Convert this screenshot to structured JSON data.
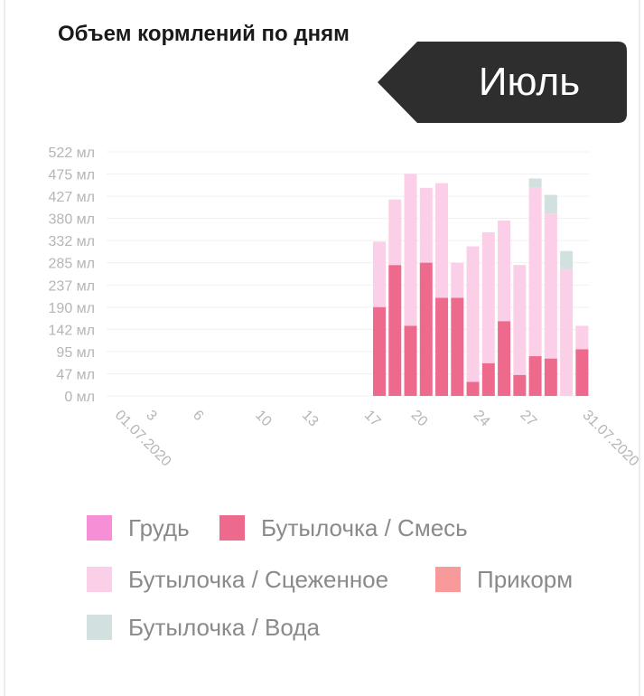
{
  "title": "Объем кормлений по дням",
  "month": "Июль",
  "colors": {
    "breast": "#f78fd6",
    "formula": "#ee6a8c",
    "expressed": "#fccfe8",
    "solid": "#f99a9a",
    "water": "#d2e0e0",
    "tag_bg": "#2e2e2e"
  },
  "chart_data": {
    "type": "bar",
    "stacked": true,
    "y_tick_labels": [
      "0 мл",
      "47 мл",
      "95 мл",
      "142 мл",
      "190 мл",
      "237 мл",
      "285 мл",
      "332 мл",
      "380 мл",
      "427 мл",
      "475 мл",
      "522 мл"
    ],
    "ylim": [
      0,
      522
    ],
    "x_range": [
      1,
      31
    ],
    "x_tick_labels": [
      {
        "day": 1,
        "label": "01.07.2020"
      },
      {
        "day": 3,
        "label": "3"
      },
      {
        "day": 6,
        "label": "6"
      },
      {
        "day": 10,
        "label": "10"
      },
      {
        "day": 13,
        "label": "13"
      },
      {
        "day": 17,
        "label": "17"
      },
      {
        "day": 20,
        "label": "20"
      },
      {
        "day": 24,
        "label": "24"
      },
      {
        "day": 27,
        "label": "27"
      },
      {
        "day": 31,
        "label": "31.07.2020"
      }
    ],
    "grid": true,
    "legend_position": "bottom",
    "days": [
      1,
      2,
      3,
      4,
      5,
      6,
      7,
      8,
      9,
      10,
      11,
      12,
      13,
      14,
      15,
      16,
      17,
      18,
      19,
      20,
      21,
      22,
      23,
      24,
      25,
      26,
      27,
      28,
      29,
      30,
      31
    ],
    "series": [
      {
        "name": "Грудь",
        "key": "breast",
        "values": [
          0,
          0,
          0,
          0,
          0,
          0,
          0,
          0,
          0,
          0,
          0,
          0,
          0,
          0,
          0,
          0,
          0,
          0,
          0,
          0,
          0,
          0,
          0,
          0,
          0,
          0,
          0,
          0,
          0,
          0,
          0
        ]
      },
      {
        "name": "Бутылочка / Смесь",
        "key": "formula",
        "values": [
          0,
          0,
          0,
          0,
          0,
          0,
          0,
          0,
          0,
          0,
          0,
          0,
          0,
          0,
          0,
          0,
          0,
          190,
          280,
          150,
          285,
          210,
          210,
          30,
          70,
          160,
          45,
          85,
          80,
          0,
          100
        ]
      },
      {
        "name": "Бутылочка / Сцеженное",
        "key": "expressed",
        "values": [
          0,
          0,
          0,
          0,
          0,
          0,
          0,
          0,
          0,
          0,
          0,
          0,
          0,
          0,
          0,
          0,
          0,
          140,
          140,
          325,
          160,
          245,
          75,
          290,
          280,
          215,
          235,
          360,
          310,
          270,
          50
        ]
      },
      {
        "name": "Прикорм",
        "key": "solid",
        "values": [
          0,
          0,
          0,
          0,
          0,
          0,
          0,
          0,
          0,
          0,
          0,
          0,
          0,
          0,
          0,
          0,
          0,
          0,
          0,
          0,
          0,
          0,
          0,
          0,
          0,
          0,
          0,
          0,
          0,
          0,
          0
        ]
      },
      {
        "name": "Бутылочка / Вода",
        "key": "water",
        "values": [
          0,
          0,
          0,
          0,
          0,
          0,
          0,
          0,
          0,
          0,
          0,
          0,
          0,
          0,
          0,
          0,
          0,
          0,
          0,
          0,
          0,
          0,
          0,
          0,
          0,
          0,
          0,
          20,
          40,
          40,
          0
        ]
      }
    ]
  },
  "legend": [
    {
      "label": "Грудь",
      "color": "#f78fd6"
    },
    {
      "label": "Бутылочка / Смесь",
      "color": "#ee6a8c"
    },
    {
      "label": "Бутылочка / Сцеженное",
      "color": "#fccfe8"
    },
    {
      "label": "Прикорм",
      "color": "#f99a9a"
    },
    {
      "label": "Бутылочка / Вода",
      "color": "#d2e0e0"
    }
  ]
}
